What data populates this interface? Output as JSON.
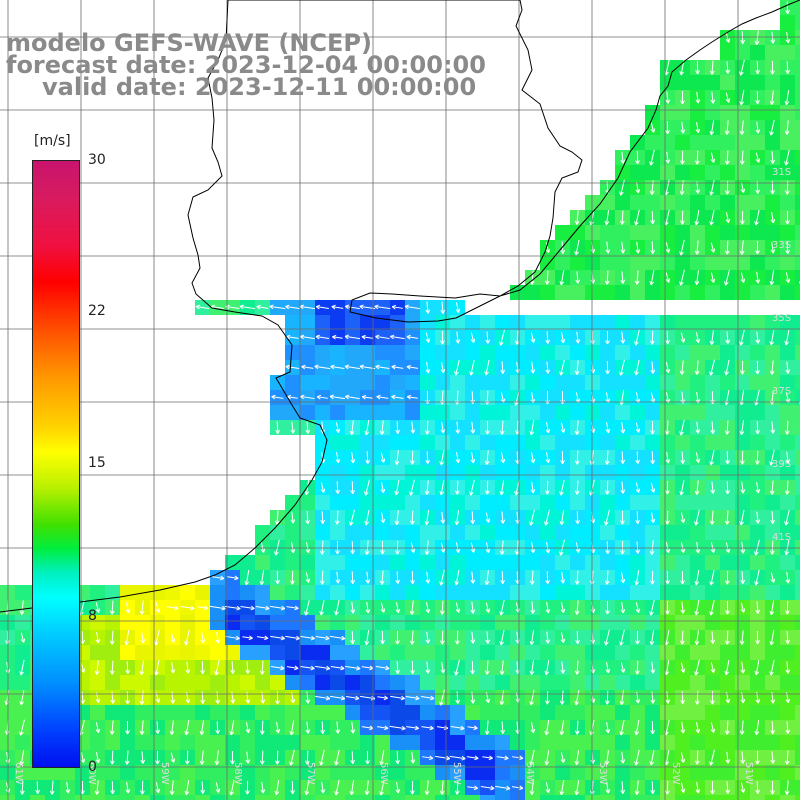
{
  "title": {
    "line1": "modelo GEFS-WAVE (NCEP)",
    "line2": "forecast date: 2023-12-04 00:00:00",
    "line3": "valid date: 2023-12-11 00:00:00"
  },
  "colorbar": {
    "unit": "[m/s]",
    "ticks": [
      "30",
      "22",
      "15",
      "8",
      "0"
    ],
    "tick_values": [
      30,
      22,
      15,
      8,
      0
    ],
    "min": 0,
    "max": 30
  },
  "map": {
    "lat_labels": [
      "31S",
      "33S",
      "35S",
      "37S",
      "39S",
      "41S"
    ],
    "lon_labels": [
      "61W",
      "60W",
      "59W",
      "58W",
      "57W",
      "56W",
      "55W",
      "54W",
      "53W",
      "52W",
      "51W"
    ],
    "colors": {
      "land": "#ffffff",
      "grid": "#6b6b6b",
      "coast": "#000000",
      "arrows": "#ffffff",
      "title": "#8a8a8a"
    }
  }
}
